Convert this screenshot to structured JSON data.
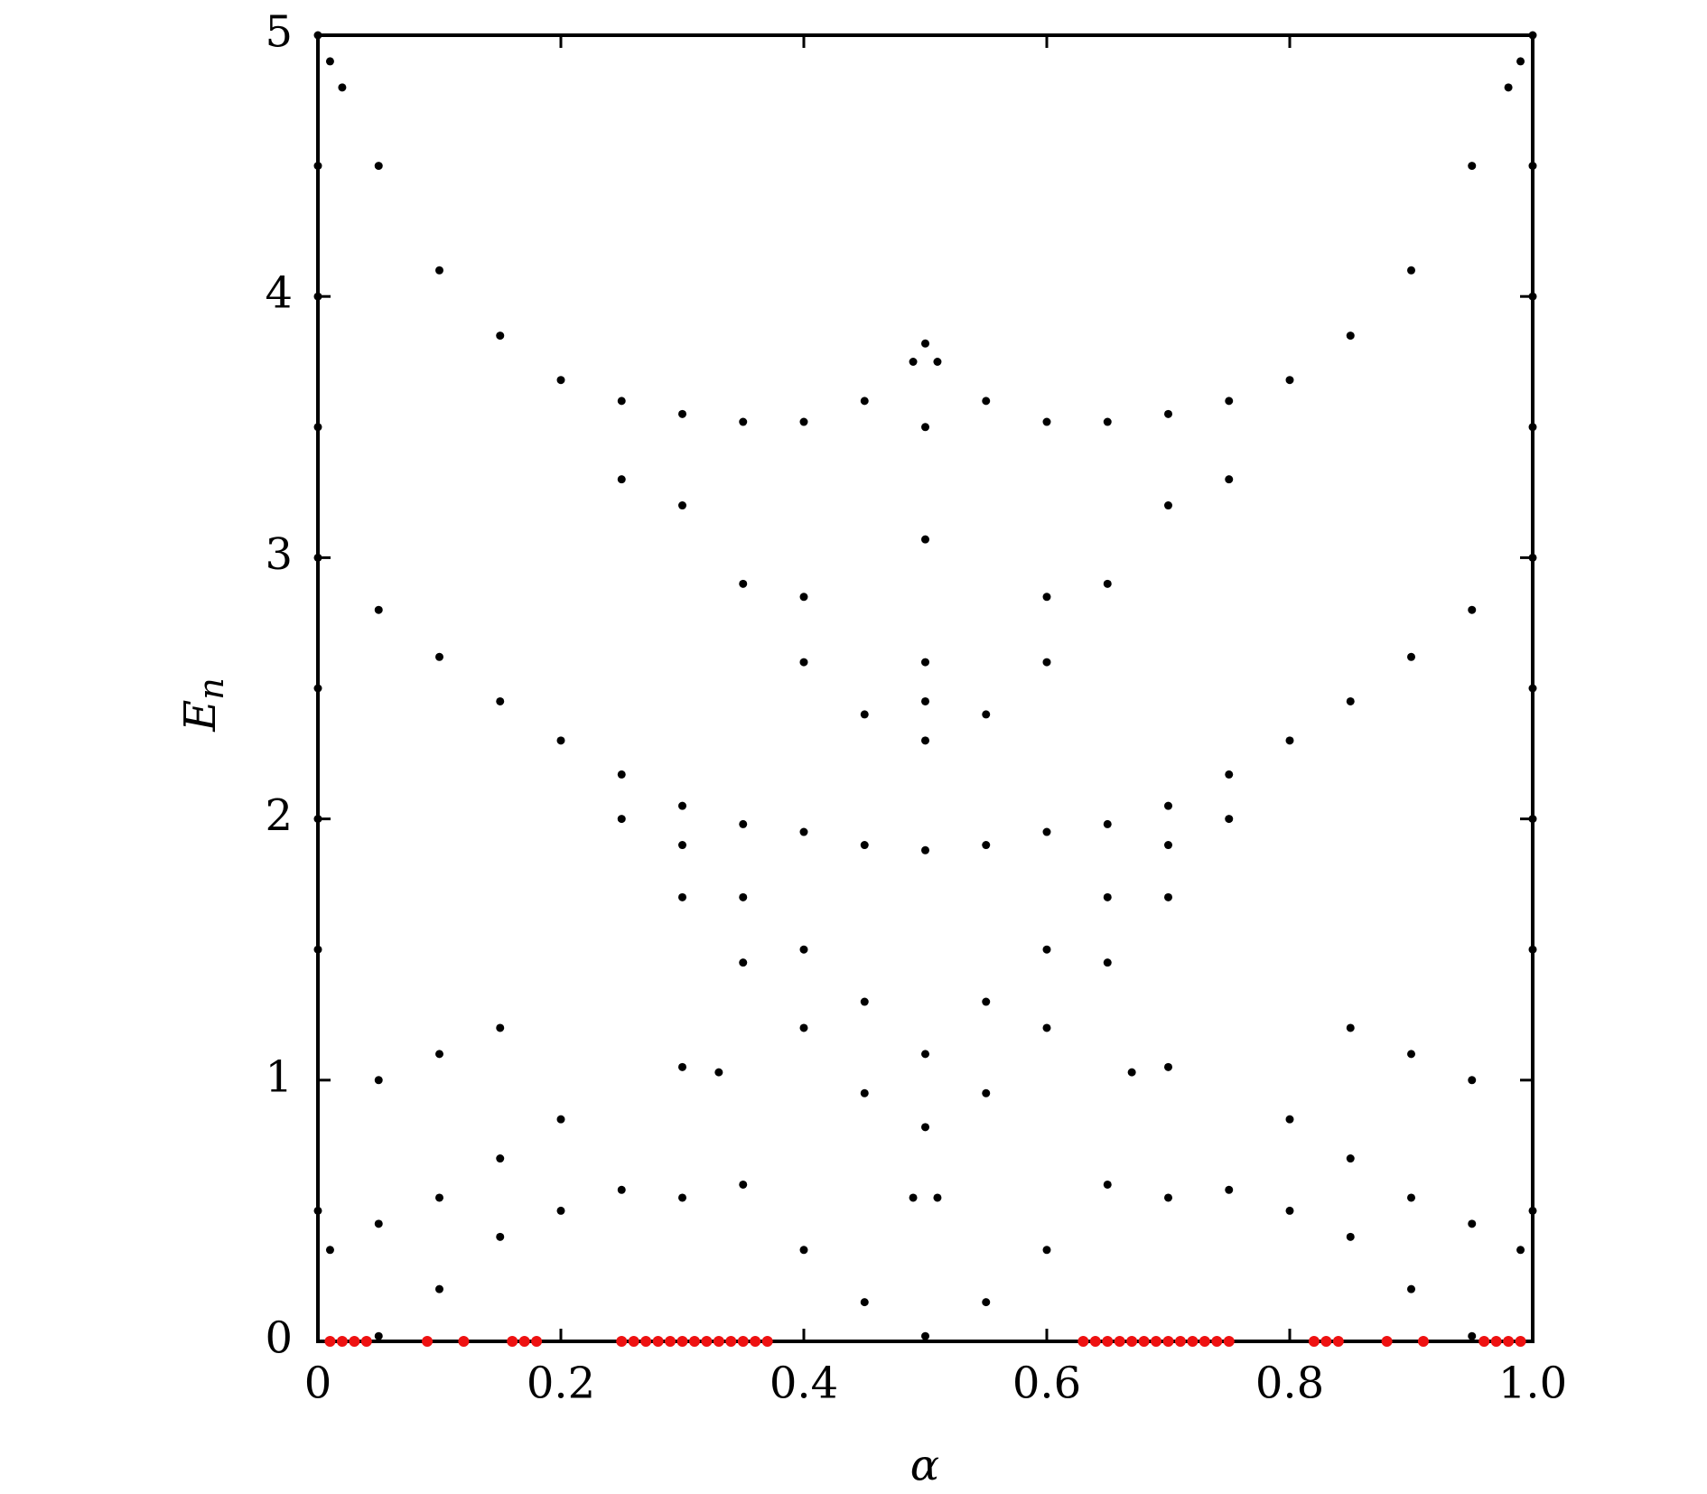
{
  "chart_data": {
    "type": "scatter",
    "xlabel": "α",
    "ylabel": "E",
    "ylabel_subscript": "n",
    "xlim": [
      0,
      1
    ],
    "ylim": [
      0,
      5
    ],
    "xticks": [
      0,
      0.2,
      0.4,
      0.6,
      0.8,
      {
        "value": 1,
        "label": "1.0"
      }
    ],
    "yticks": [
      0,
      1,
      2,
      3,
      4,
      5
    ],
    "series": [
      {
        "color": "#000000",
        "x": [
          0.01,
          0.02,
          0.05,
          0.1,
          0.15,
          0.2,
          0.25,
          0.3,
          0.35,
          0.4,
          0.45,
          0.49,
          0.5,
          0.5,
          0.5,
          0.99,
          0.98,
          0.95,
          0.9,
          0.85,
          0.8,
          0.75,
          0.7,
          0.65,
          0.6,
          0.55,
          0.51,
          0,
          0.05,
          0.1,
          0.15,
          0.2,
          0.25,
          0.3,
          0.35,
          0.4,
          0.45,
          0.5,
          1,
          0.95,
          0.9,
          0.85,
          0.8,
          0.75,
          0.7,
          0.65,
          0.6,
          0.55,
          0.25,
          0.3,
          0.35,
          0.4,
          0.45,
          0.5,
          0.75,
          0.7,
          0.65,
          0.6,
          0.55,
          0.3,
          0.35,
          0.4,
          0.45,
          0.5,
          0.7,
          0.65,
          0.6,
          0.55,
          0.3,
          0.35,
          0.4,
          0.45,
          0.5,
          0.7,
          0.65,
          0.6,
          0.55,
          0.25,
          0.75,
          0.4,
          0.6,
          0.5,
          0.5,
          0.01,
          0.05,
          0.1,
          0.15,
          0.2,
          0.99,
          0.95,
          0.9,
          0.85,
          0.8,
          0.05,
          0.1,
          0.15,
          0.95,
          0.9,
          0.85,
          0.05,
          0.1,
          0.15,
          0.2,
          0.25,
          0.3,
          0.35,
          0.4,
          0.45,
          0.5,
          0.95,
          0.9,
          0.85,
          0.8,
          0.75,
          0.7,
          0.65,
          0.6,
          0.55,
          0.3,
          0.33,
          0.7,
          0.67,
          0.49,
          0.51,
          0,
          0,
          0,
          0,
          0,
          0,
          0,
          0,
          1,
          1,
          1,
          1,
          1,
          1,
          1,
          1
        ],
        "y": [
          4.9,
          4.8,
          4.5,
          4.1,
          3.85,
          3.68,
          3.6,
          3.55,
          3.52,
          3.52,
          3.6,
          3.75,
          3.82,
          3.5,
          3.07,
          4.9,
          4.8,
          4.5,
          4.1,
          3.85,
          3.68,
          3.6,
          3.55,
          3.52,
          3.52,
          3.6,
          3.75,
          3.0,
          2.8,
          2.62,
          2.45,
          2.3,
          2.17,
          2.05,
          1.98,
          1.95,
          1.9,
          1.88,
          3.0,
          2.8,
          2.62,
          2.45,
          2.3,
          2.17,
          2.05,
          1.98,
          1.95,
          1.9,
          2.0,
          1.7,
          1.45,
          1.2,
          0.95,
          0.82,
          2.0,
          1.7,
          1.45,
          1.2,
          0.95,
          1.9,
          1.7,
          1.5,
          1.3,
          1.1,
          1.9,
          1.7,
          1.5,
          1.3,
          3.2,
          2.9,
          2.6,
          2.4,
          2.3,
          3.2,
          2.9,
          2.6,
          2.4,
          3.3,
          3.3,
          2.85,
          2.85,
          2.6,
          2.45,
          0.35,
          0.45,
          0.55,
          0.7,
          0.85,
          0.35,
          0.45,
          0.55,
          0.7,
          0.85,
          1.0,
          1.1,
          1.2,
          1.0,
          1.1,
          1.2,
          0.02,
          0.2,
          0.4,
          0.5,
          0.58,
          0.55,
          0.6,
          0.35,
          0.15,
          0.02,
          0.02,
          0.2,
          0.4,
          0.5,
          0.58,
          0.55,
          0.6,
          0.35,
          0.15,
          1.05,
          1.03,
          1.05,
          1.03,
          0.55,
          0.55,
          0.5,
          1.5,
          2,
          2.5,
          3.5,
          4,
          4.5,
          5,
          0.5,
          1.5,
          2,
          2.5,
          3.5,
          4,
          4.5,
          5
        ]
      },
      {
        "color": "#ee1111",
        "x": [
          0.01,
          0.02,
          0.03,
          0.04,
          0.09,
          0.12,
          0.16,
          0.17,
          0.18,
          0.25,
          0.26,
          0.27,
          0.28,
          0.29,
          0.3,
          0.31,
          0.32,
          0.33,
          0.34,
          0.35,
          0.36,
          0.37,
          0.63,
          0.64,
          0.65,
          0.66,
          0.67,
          0.68,
          0.69,
          0.7,
          0.71,
          0.72,
          0.73,
          0.74,
          0.75,
          0.82,
          0.83,
          0.84,
          0.88,
          0.91,
          0.96,
          0.97,
          0.98,
          0.99
        ],
        "y": [
          0,
          0,
          0,
          0,
          0,
          0,
          0,
          0,
          0,
          0,
          0,
          0,
          0,
          0,
          0,
          0,
          0,
          0,
          0,
          0,
          0,
          0,
          0,
          0,
          0,
          0,
          0,
          0,
          0,
          0,
          0,
          0,
          0,
          0,
          0,
          0,
          0,
          0,
          0,
          0,
          0,
          0,
          0,
          0
        ]
      }
    ]
  }
}
